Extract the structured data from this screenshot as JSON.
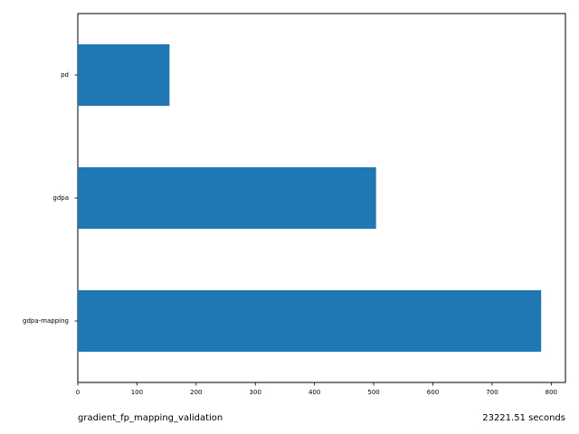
{
  "chart_data": {
    "type": "bar",
    "orientation": "horizontal",
    "categories": [
      "pd",
      "gdpa",
      "gdpa-mapping"
    ],
    "values": [
      155,
      504,
      783
    ],
    "color": "#1f77b4",
    "xlim": [
      0,
      824
    ],
    "xticks": [
      0,
      100,
      200,
      300,
      400,
      500,
      600,
      700,
      800
    ],
    "grid": false,
    "legend": "none"
  },
  "footer": {
    "left_text": "gradient_fp_mapping_validation",
    "right_text": "23221.51 seconds"
  }
}
